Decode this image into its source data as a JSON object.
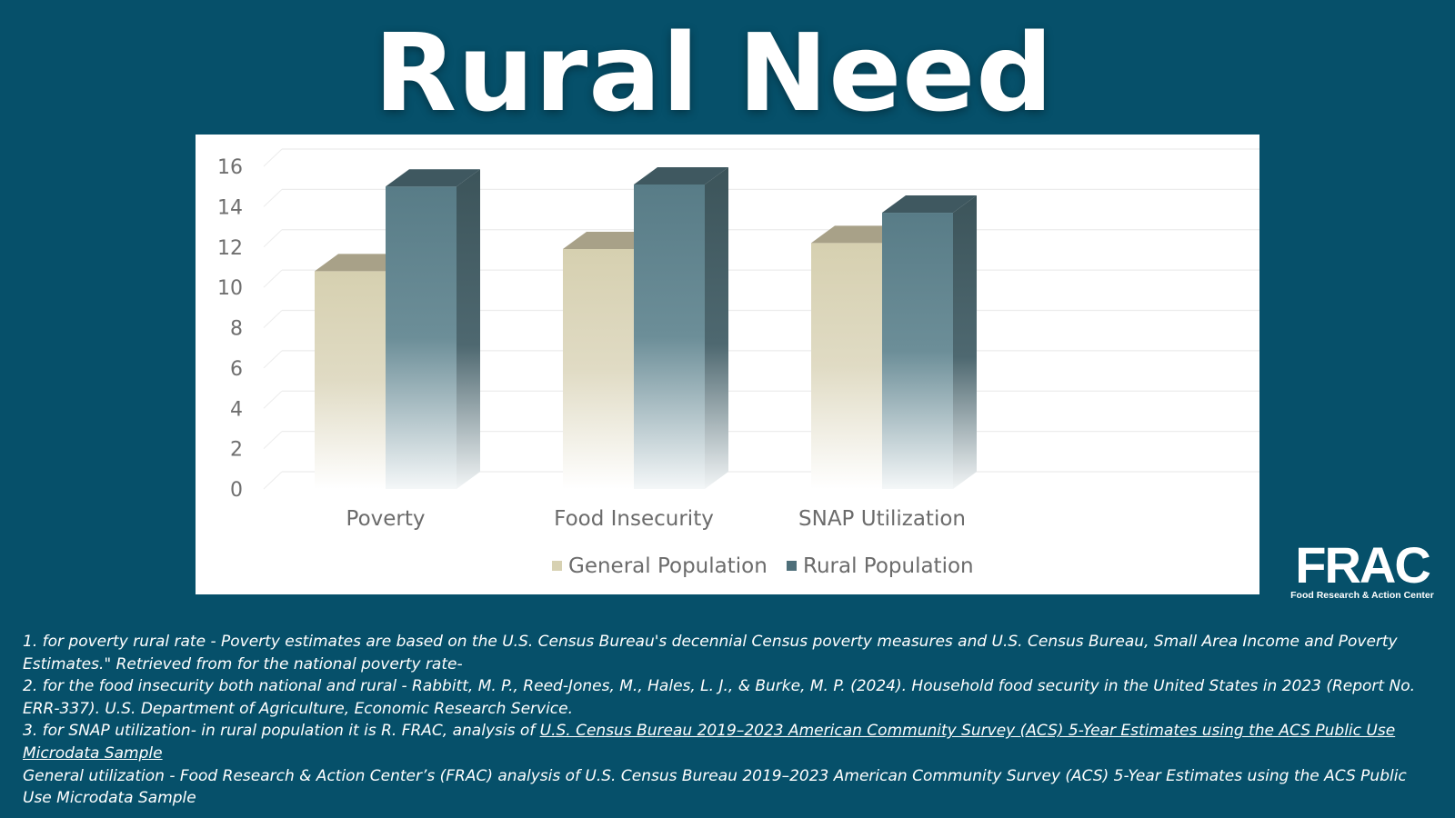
{
  "slide": {
    "title": "Rural Need"
  },
  "colors": {
    "background": "#06506a",
    "general_population": "#d7d1b2",
    "rural_population": "#5a7e89"
  },
  "chart_data": {
    "type": "bar",
    "categories": [
      "Poverty",
      "Food Insecurity",
      "SNAP Utilization"
    ],
    "series": [
      {
        "name": "General Population",
        "values": [
          10.8,
          11.9,
          12.2
        ]
      },
      {
        "name": "Rural Population",
        "values": [
          15.0,
          15.1,
          13.7
        ]
      }
    ],
    "ylim": [
      0,
      16
    ],
    "yticks": [
      "0",
      "2",
      "4",
      "6",
      "8",
      "10",
      "12",
      "14",
      "16"
    ],
    "grid": true,
    "legend": "bottom",
    "style": "3d-column"
  },
  "logo": {
    "mark": "FRAC",
    "subtitle": "Food Research & Action Center"
  },
  "footnotes": {
    "n1": "1. for poverty rural rate - Poverty estimates are based on the U.S. Census Bureau's decennial Census poverty measures and U.S. Census Bureau, Small Area Income and Poverty Estimates.\" Retrieved from for the national poverty rate-",
    "n2": "2. for the food insecurity both national and rural - Rabbitt, M. P., Reed-Jones, M., Hales, L. J., & Burke, M. P. (2024). Household food security in the United States in 2023 (Report No. ERR-337). U.S. Department of Agriculture, Economic Research Service.",
    "n3_prefix": "3. for SNAP utilization- in rural population it is R. FRAC, analysis of ",
    "n3_link": "U.S. Census Bureau 2019–2023 American Community Survey (ACS) 5-Year Estimates using the ACS Public Use Microdata Sample",
    "n4": "General utilization - Food Research & Action Center’s (FRAC) analysis of U.S. Census Bureau 2019–2023 American Community Survey (ACS) 5-Year Estimates using the ACS Public Use Microdata Sample"
  }
}
